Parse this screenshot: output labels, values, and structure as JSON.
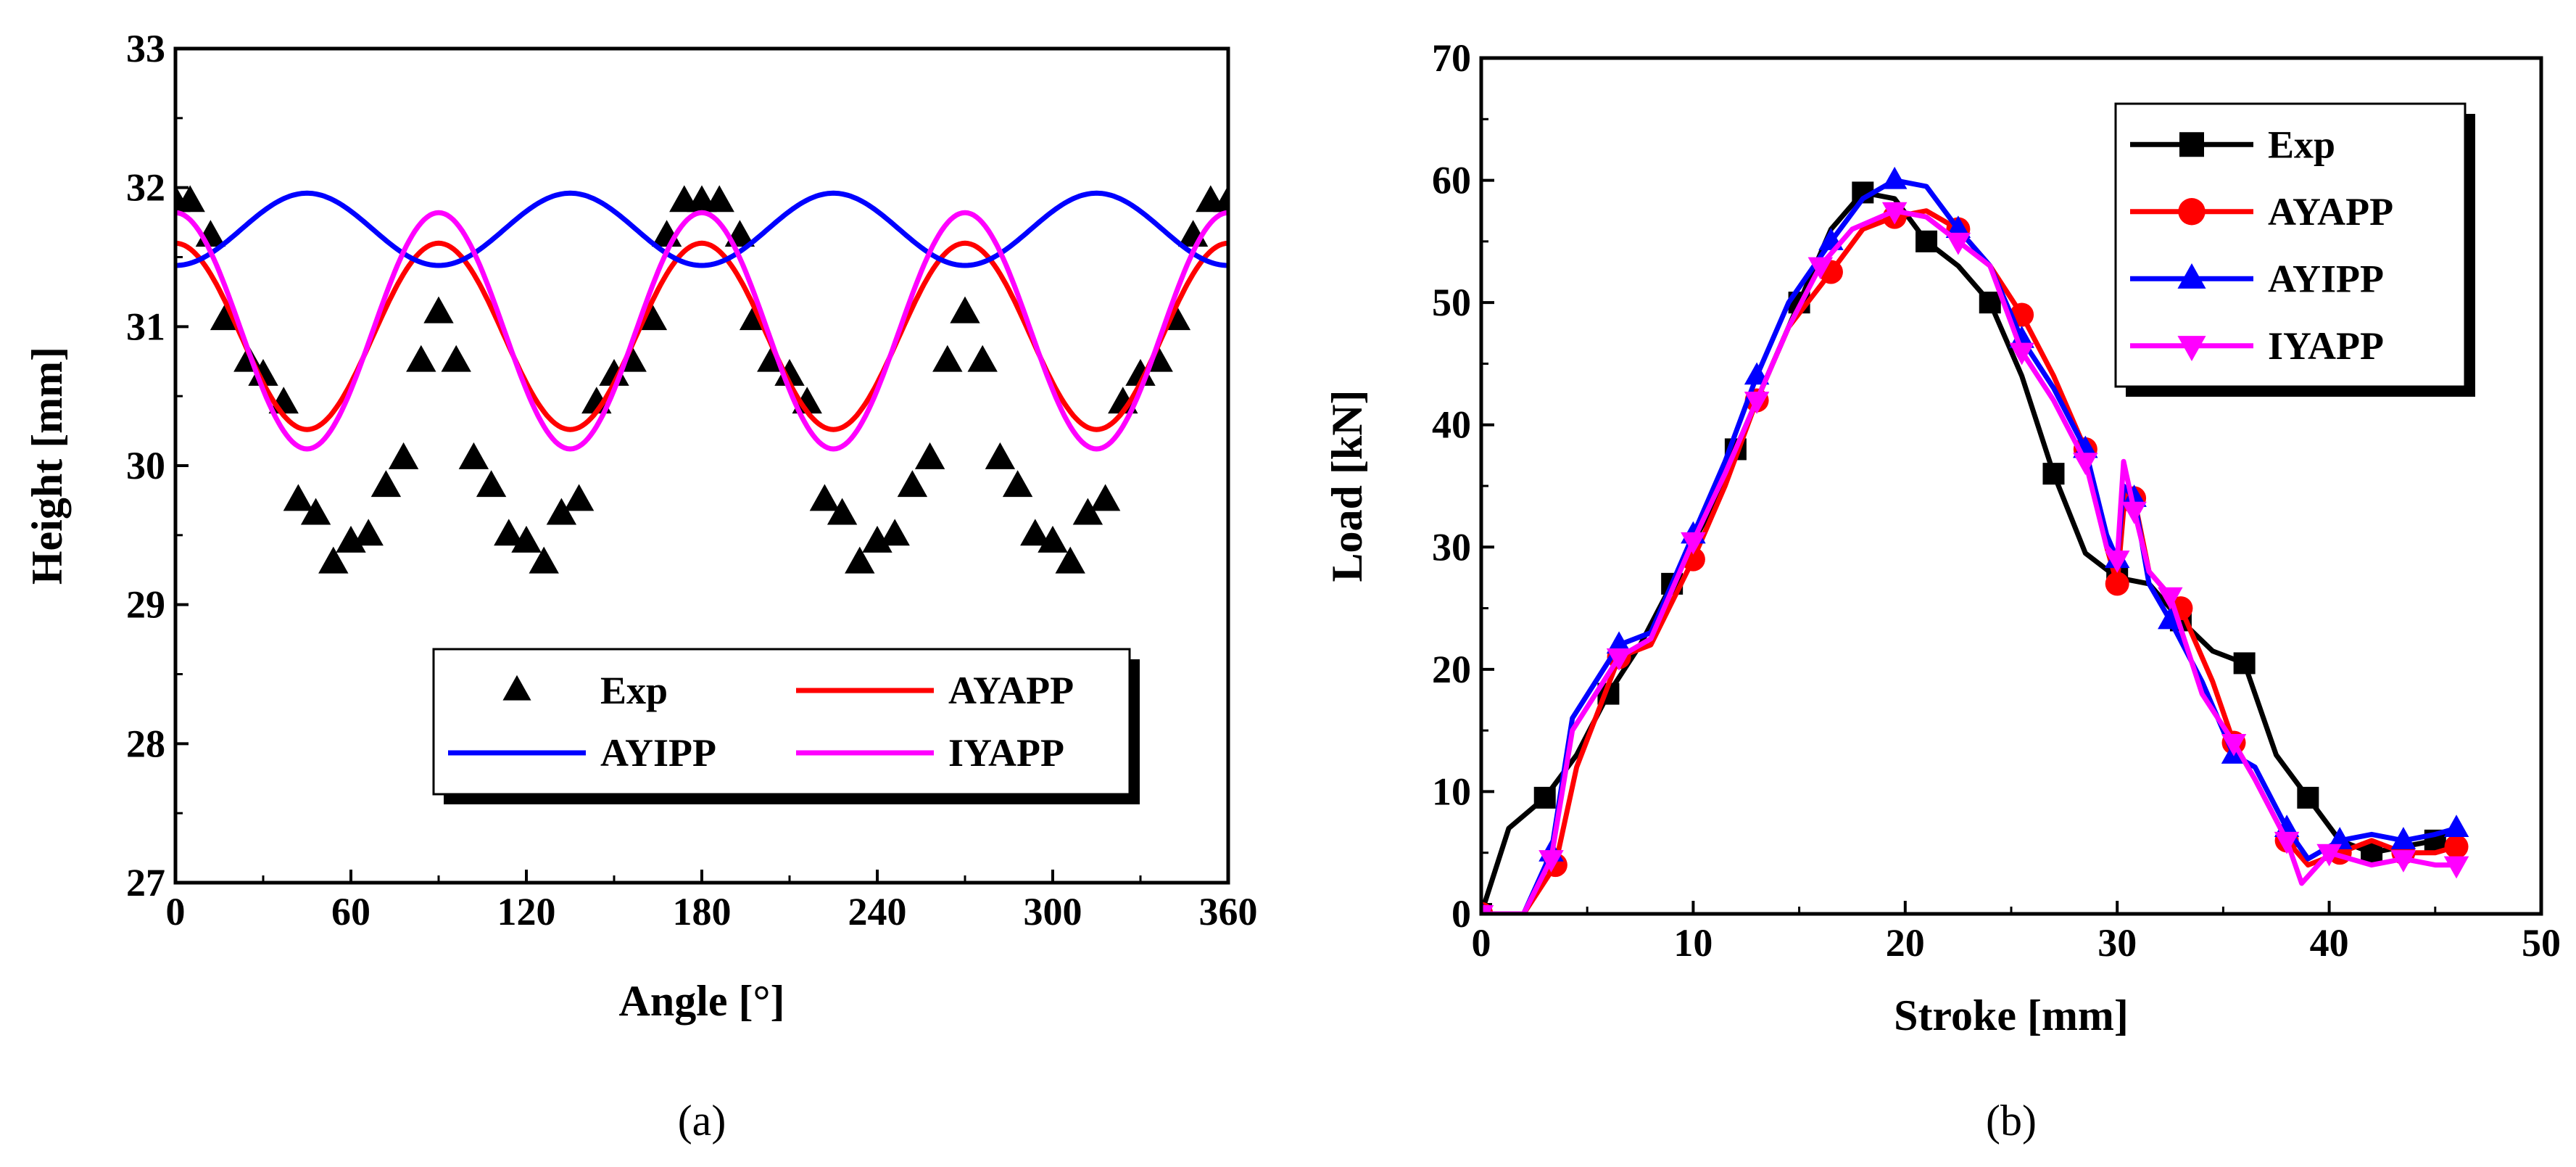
{
  "chart_data": [
    {
      "type": "line",
      "panel_label": "(a)",
      "xlabel": "Angle [°]",
      "ylabel": "Height [mm]",
      "xlim": [
        0,
        360
      ],
      "ylim": [
        27,
        33
      ],
      "xticks": [
        0,
        60,
        120,
        180,
        240,
        300,
        360
      ],
      "yticks": [
        27,
        28,
        29,
        30,
        31,
        32,
        33
      ],
      "x_tick_labels": [
        "0",
        "60",
        "120",
        "180",
        "240",
        "300",
        "360"
      ],
      "y_tick_labels": [
        "27",
        "28",
        "29",
        "30",
        "31",
        "32",
        "33"
      ],
      "grid": false,
      "legend": {
        "position": "bottom-right",
        "columns": 2
      },
      "series": [
        {
          "name": "Exp",
          "style": "markers",
          "marker": "triangle-up",
          "color": "#000000",
          "x": [
            0,
            5,
            12,
            17,
            25,
            30,
            37,
            42,
            48,
            54,
            60,
            66,
            72,
            78,
            84,
            90,
            96,
            102,
            108,
            114,
            120,
            126,
            132,
            138,
            144,
            150,
            156,
            163,
            168,
            174,
            180,
            186,
            193,
            198,
            204,
            210,
            216,
            222,
            228,
            234,
            240,
            246,
            252,
            258,
            264,
            270,
            276,
            282,
            288,
            294,
            300,
            306,
            312,
            318,
            324,
            330,
            336,
            342,
            348,
            354,
            360
          ],
          "y": [
            31.9,
            31.9,
            31.65,
            31.05,
            30.75,
            30.65,
            30.45,
            29.75,
            29.65,
            29.3,
            29.45,
            29.5,
            29.85,
            30.05,
            30.75,
            31.1,
            30.75,
            30.05,
            29.85,
            29.5,
            29.45,
            29.3,
            29.65,
            29.75,
            30.45,
            30.65,
            30.75,
            31.05,
            31.65,
            31.9,
            31.9,
            31.9,
            31.65,
            31.05,
            30.75,
            30.65,
            30.45,
            29.75,
            29.65,
            29.3,
            29.45,
            29.5,
            29.85,
            30.05,
            30.75,
            31.1,
            30.75,
            30.05,
            29.85,
            29.5,
            29.45,
            29.3,
            29.65,
            29.75,
            30.45,
            30.65,
            30.75,
            31.05,
            31.65,
            31.9,
            31.9
          ]
        },
        {
          "name": "AYAPP",
          "style": "line",
          "color": "#ff0000",
          "function": "cos4",
          "mean": 30.93,
          "amplitude": 0.67,
          "phase_deg": 0
        },
        {
          "name": "AYIPP",
          "style": "line",
          "color": "#0000ff",
          "function": "cos4",
          "mean": 31.7,
          "amplitude": -0.26,
          "phase_deg": 0
        },
        {
          "name": "IYAPP",
          "style": "line",
          "color": "#ff00ff",
          "function": "cos4",
          "mean": 30.97,
          "amplitude": 0.85,
          "phase_deg": 0
        }
      ]
    },
    {
      "type": "line",
      "panel_label": "(b)",
      "xlabel": "Stroke [mm]",
      "ylabel": "Load [kN]",
      "xlim": [
        0,
        50
      ],
      "ylim": [
        0,
        70
      ],
      "xticks": [
        0,
        10,
        20,
        30,
        40,
        50
      ],
      "yticks": [
        0,
        10,
        20,
        30,
        40,
        50,
        60,
        70
      ],
      "x_tick_labels": [
        "0",
        "10",
        "20",
        "30",
        "40",
        "50"
      ],
      "y_tick_labels": [
        "0",
        "10",
        "20",
        "30",
        "40",
        "50",
        "60",
        "70"
      ],
      "grid": false,
      "legend": {
        "position": "top-right",
        "columns": 1
      },
      "series": [
        {
          "name": "Exp",
          "style": "line-markers",
          "marker": "square",
          "color": "#000000",
          "x": [
            0,
            1.3,
            3,
            4.5,
            6,
            7.5,
            9,
            10.5,
            12,
            13.5,
            15,
            16.5,
            18,
            19.5,
            21,
            22.5,
            24,
            25.5,
            27,
            28.5,
            30,
            31.5,
            33,
            34.5,
            36,
            37.5,
            39,
            40.5,
            42,
            43.5,
            45
          ],
          "y": [
            0,
            7,
            9.5,
            13,
            18,
            22,
            27,
            32,
            38,
            44,
            50,
            56,
            59,
            58.5,
            55,
            53,
            50,
            44,
            36,
            29.5,
            27.5,
            27,
            24,
            21.5,
            20.5,
            13,
            9.5,
            6,
            5,
            5.5,
            6
          ]
        },
        {
          "name": "AYAPP",
          "style": "line-markers",
          "marker": "circle",
          "color": "#ff0000",
          "x": [
            0,
            2,
            3.5,
            4.5,
            6.5,
            8,
            10,
            11.5,
            13,
            14.5,
            16.5,
            18,
            19.5,
            21,
            22.5,
            24,
            25.5,
            27,
            28.5,
            29.5,
            30,
            30.3,
            30.8,
            31.5,
            33,
            34.5,
            35.5,
            36.5,
            38,
            39,
            40.5,
            42,
            43.5,
            45,
            46
          ],
          "y": [
            0,
            0,
            4,
            12,
            21,
            22,
            29,
            35,
            42,
            48,
            52.5,
            56,
            57,
            57.5,
            56,
            53,
            49,
            44,
            38,
            30,
            27,
            33,
            34,
            28,
            25,
            19,
            14,
            11,
            6,
            4,
            5,
            6,
            5,
            5,
            5.5
          ]
        },
        {
          "name": "AYIPP",
          "style": "line-markers",
          "marker": "triangle-up",
          "color": "#0000ff",
          "x": [
            0,
            2,
            3.3,
            4.3,
            6.5,
            8,
            10,
            11.5,
            13,
            14.5,
            16.5,
            18,
            19.5,
            21,
            22.5,
            24,
            25.5,
            27,
            28.5,
            29.5,
            30,
            30.3,
            30.8,
            31.5,
            32.5,
            34,
            35.5,
            36.5,
            38,
            39,
            40.5,
            42,
            43.5,
            45,
            46
          ],
          "y": [
            0,
            0,
            5,
            16,
            22,
            23,
            31,
            37,
            44,
            50,
            55,
            58.5,
            60,
            59.5,
            56,
            53,
            47,
            43,
            38,
            31,
            29,
            35,
            34,
            27,
            24,
            19,
            13,
            12,
            7,
            4.5,
            6,
            6.5,
            6,
            6.5,
            7
          ]
        },
        {
          "name": "IYAPP",
          "style": "line-markers",
          "marker": "triangle-down",
          "color": "#ff00ff",
          "x": [
            0,
            2,
            3.3,
            4.3,
            6.5,
            8,
            10,
            11.5,
            13,
            14.5,
            16,
            17.5,
            19.5,
            21,
            22.5,
            24,
            25.5,
            27,
            28.5,
            29.5,
            30,
            30.3,
            30.8,
            31.5,
            32.5,
            34,
            35.5,
            36.5,
            38,
            38.7,
            40,
            42,
            43.5,
            45,
            46
          ],
          "y": [
            0,
            0,
            4.5,
            15,
            21,
            22.5,
            30.5,
            36,
            42,
            48,
            53,
            56,
            57.5,
            57,
            55,
            53,
            46,
            42,
            37,
            30,
            29,
            37,
            33,
            28,
            26,
            18,
            14,
            11,
            6,
            2.5,
            5,
            4,
            4.5,
            4,
            4
          ]
        }
      ]
    }
  ]
}
